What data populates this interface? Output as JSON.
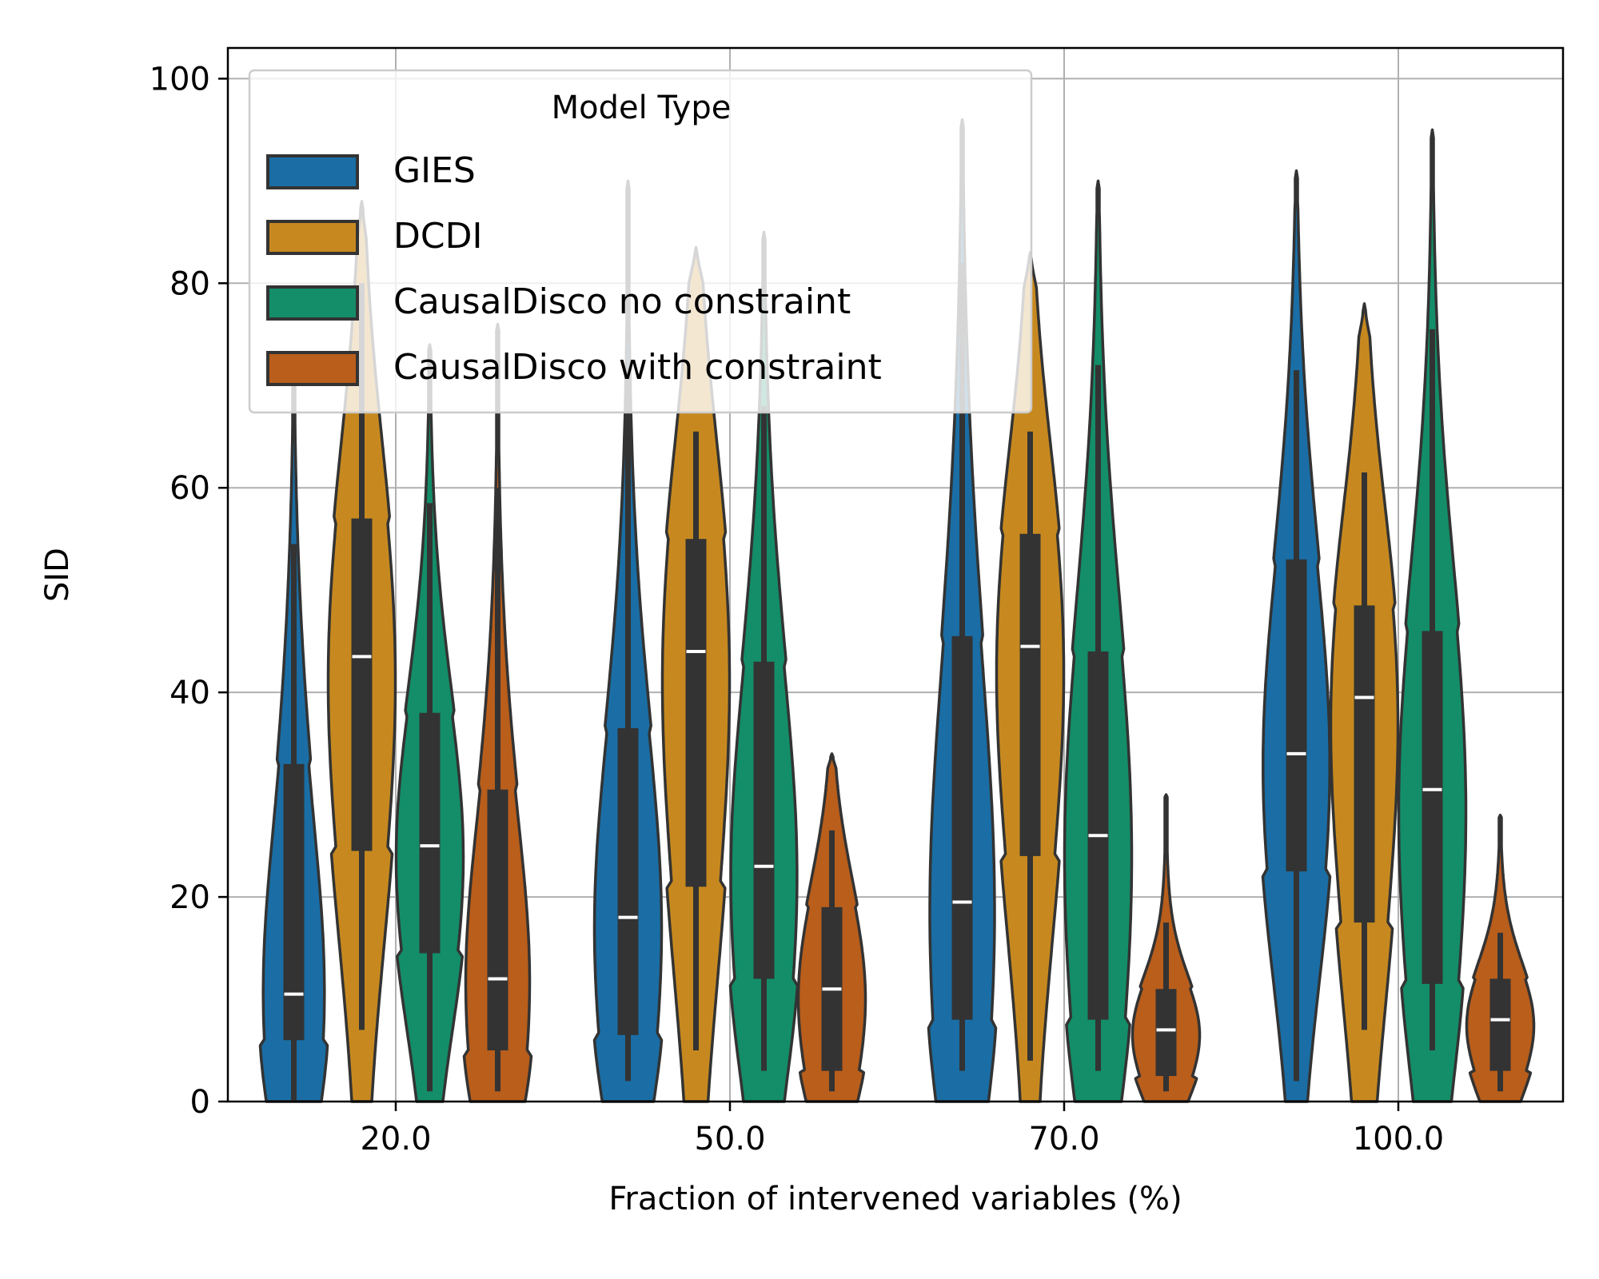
{
  "chart_data": {
    "type": "violin",
    "title": "",
    "xlabel": "Fraction of intervened variables (%)",
    "ylabel": "SID",
    "ylim": [
      0,
      103
    ],
    "yticks": [
      0,
      20,
      40,
      60,
      80,
      100
    ],
    "grid": true,
    "categories": [
      "20.0",
      "50.0",
      "70.0",
      "100.0"
    ],
    "legend": {
      "title": "Model Type",
      "position": "upper-left"
    },
    "series": [
      {
        "name": "GIES",
        "color": "#1a6ea5",
        "stats": [
          {
            "min": 0,
            "max": 73,
            "q1": 6,
            "median": 10.5,
            "q3": 33,
            "whisker_low": 0,
            "whisker_high": 54.5
          },
          {
            "min": 0,
            "max": 90,
            "q1": 6.5,
            "median": 18,
            "q3": 36.5,
            "whisker_low": 2,
            "whisker_high": 72
          },
          {
            "min": 0,
            "max": 96,
            "q1": 8,
            "median": 19.5,
            "q3": 45.5,
            "whisker_low": 3,
            "whisker_high": 82
          },
          {
            "min": 0,
            "max": 91,
            "q1": 22.5,
            "median": 34,
            "q3": 53,
            "whisker_low": 2,
            "whisker_high": 71.5
          }
        ]
      },
      {
        "name": "DCDI",
        "color": "#c7891f",
        "stats": [
          {
            "min": 0,
            "max": 88,
            "q1": 24.5,
            "median": 43.5,
            "q3": 57,
            "whisker_low": 7,
            "whisker_high": 80
          },
          {
            "min": 0,
            "max": 83.5,
            "q1": 21,
            "median": 44,
            "q3": 55,
            "whisker_low": 5,
            "whisker_high": 65.5
          },
          {
            "min": 0,
            "max": 83,
            "q1": 24,
            "median": 44.5,
            "q3": 55.5,
            "whisker_low": 4,
            "whisker_high": 65.5
          },
          {
            "min": 0,
            "max": 78,
            "q1": 17.5,
            "median": 39.5,
            "q3": 48.5,
            "whisker_low": 7,
            "whisker_high": 61.5
          }
        ]
      },
      {
        "name": "CausalDisco no constraint",
        "color": "#138e68",
        "stats": [
          {
            "min": 0,
            "max": 74,
            "q1": 14.5,
            "median": 25,
            "q3": 38,
            "whisker_low": 1,
            "whisker_high": 58.5
          },
          {
            "min": 0,
            "max": 85,
            "q1": 12,
            "median": 23,
            "q3": 43,
            "whisker_low": 3,
            "whisker_high": 68
          },
          {
            "min": 0,
            "max": 90,
            "q1": 8,
            "median": 26,
            "q3": 44,
            "whisker_low": 3,
            "whisker_high": 72
          },
          {
            "min": 0,
            "max": 95,
            "q1": 11.5,
            "median": 30.5,
            "q3": 46,
            "whisker_low": 5,
            "whisker_high": 75.5
          }
        ]
      },
      {
        "name": "CausalDisco with constraint",
        "color": "#b95e1b",
        "stats": [
          {
            "min": 0,
            "max": 76,
            "q1": 5,
            "median": 12,
            "q3": 30.5,
            "whisker_low": 1,
            "whisker_high": 60
          },
          {
            "min": 0,
            "max": 34,
            "q1": 3,
            "median": 11,
            "q3": 19,
            "whisker_low": 1,
            "whisker_high": 26.5
          },
          {
            "min": 0,
            "max": 30,
            "q1": 2.5,
            "median": 7,
            "q3": 11,
            "whisker_low": 1,
            "whisker_high": 17.5
          },
          {
            "min": 0,
            "max": 28,
            "q1": 3,
            "median": 8,
            "q3": 12,
            "whisker_low": 1,
            "whisker_high": 16.5
          }
        ]
      }
    ]
  }
}
